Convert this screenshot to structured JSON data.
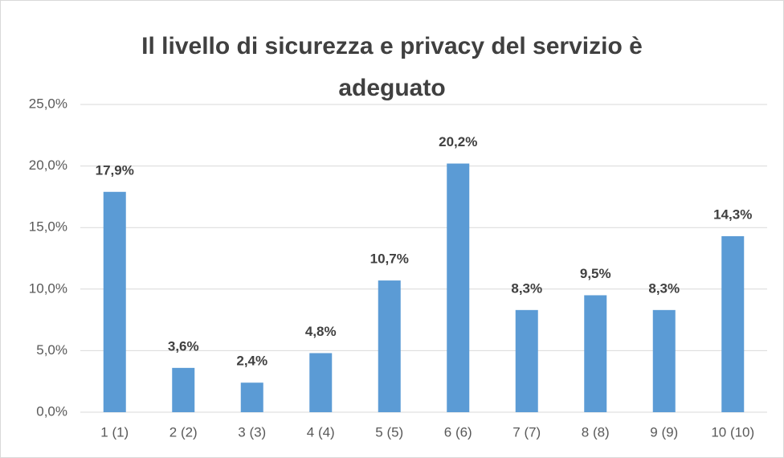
{
  "chart_data": {
    "type": "bar",
    "title": "Il livello di sicurezza e privacy del servizio è adeguato",
    "categories": [
      "1 (1)",
      "2 (2)",
      "3 (3)",
      "4 (4)",
      "5 (5)",
      "6 (6)",
      "7 (7)",
      "8 (8)",
      "9 (9)",
      "10 (10)"
    ],
    "values": [
      17.9,
      3.6,
      2.4,
      4.8,
      10.7,
      20.2,
      8.3,
      9.5,
      8.3,
      14.3
    ],
    "value_labels": [
      "17,9%",
      "3,6%",
      "2,4%",
      "4,8%",
      "10,7%",
      "20,2%",
      "8,3%",
      "9,5%",
      "8,3%",
      "14,3%"
    ],
    "color": "#5b9bd5",
    "ylim": [
      0,
      25
    ],
    "yticks": [
      {
        "value": 0,
        "label": "0,0%"
      },
      {
        "value": 5,
        "label": "5,0%"
      },
      {
        "value": 10,
        "label": "10,0%"
      },
      {
        "value": 15,
        "label": "15,0%"
      },
      {
        "value": 20,
        "label": "20,0%"
      },
      {
        "value": 25,
        "label": "25,0%"
      }
    ],
    "grid": true
  }
}
